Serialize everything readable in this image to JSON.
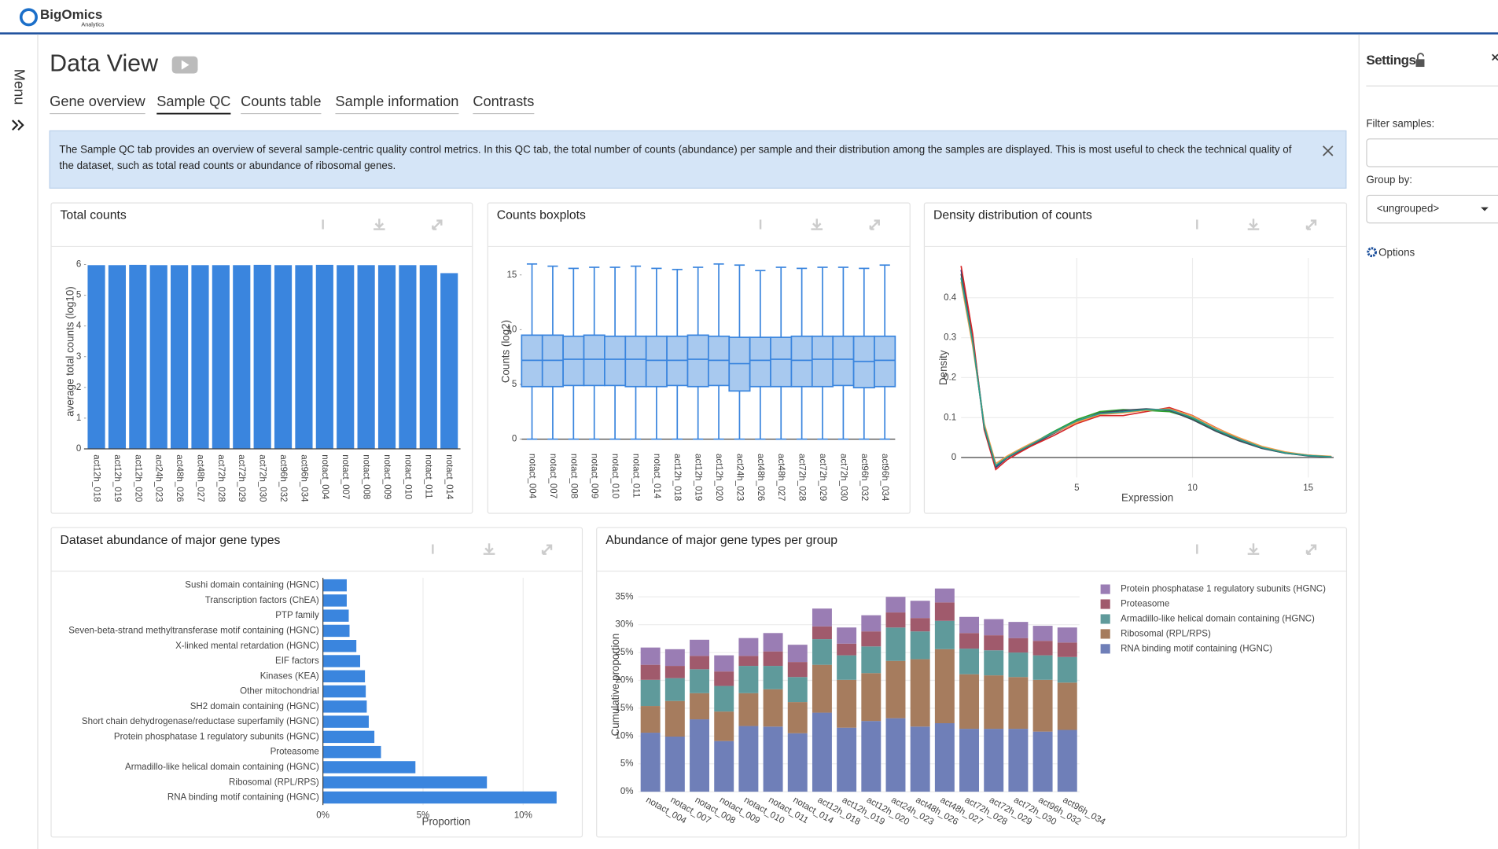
{
  "header": {
    "brand": "BigOmics",
    "sub": "Analytics"
  },
  "sidebar": {
    "label": "Menu"
  },
  "page": {
    "title": "Data View",
    "tabs": [
      "Gene overview",
      "Sample QC",
      "Counts table",
      "Sample information",
      "Contrasts"
    ],
    "active_tab": 1
  },
  "info": "The Sample QC tab provides an overview of several sample-centric quality control metrics. In this QC tab, the total number of counts (abundance) per sample and their distribution among the samples are displayed. This is most useful to check the technical quality of the dataset, such as total read counts or abundance of ribosomal genes.",
  "settings": {
    "title": "Settings",
    "filter_label": "Filter samples:",
    "group_label": "Group by:",
    "group_value": "<ungrouped>",
    "options": "Options"
  },
  "chart_data": [
    {
      "type": "bar",
      "title": "Total counts",
      "ylabel": "average total counts (log10)",
      "categories": [
        "act12h_018",
        "act12h_019",
        "act12h_020",
        "act24h_023",
        "act48h_026",
        "act48h_027",
        "act72h_028",
        "act72h_029",
        "act72h_030",
        "act96h_032",
        "act96h_034",
        "notact_004",
        "notact_007",
        "notact_008",
        "notact_009",
        "notact_010",
        "notact_011",
        "notact_014"
      ],
      "values": [
        5.98,
        5.98,
        5.99,
        5.98,
        5.98,
        5.98,
        5.98,
        5.98,
        5.99,
        5.98,
        5.98,
        5.99,
        5.98,
        5.98,
        5.98,
        5.98,
        5.98,
        5.72
      ],
      "color": "#3a85de",
      "ylim": [
        0,
        6
      ],
      "yticks": [
        0,
        1,
        2,
        3,
        4,
        5,
        6
      ],
      "grid": false
    },
    {
      "type": "box",
      "title": "Counts boxplots",
      "ylabel": "Counts (log2)",
      "categories": [
        "notact_004",
        "notact_007",
        "notact_008",
        "notact_009",
        "notact_010",
        "notact_011",
        "notact_014",
        "act12h_018",
        "act12h_019",
        "act12h_020",
        "act24h_023",
        "act48h_026",
        "act48h_027",
        "act72h_028",
        "act72h_029",
        "act72h_030",
        "act96h_032",
        "act96h_034"
      ],
      "min": [
        0,
        0,
        0,
        0,
        0,
        0,
        0,
        0,
        0,
        0,
        0,
        0,
        0,
        0,
        0,
        0,
        0,
        0
      ],
      "q1": [
        4.8,
        4.8,
        4.9,
        4.9,
        4.9,
        4.8,
        4.8,
        4.9,
        4.8,
        4.9,
        4.4,
        4.8,
        4.8,
        4.8,
        4.8,
        4.9,
        4.7,
        4.8
      ],
      "median": [
        7.2,
        7.2,
        7.3,
        7.3,
        7.3,
        7.3,
        7.2,
        7.2,
        7.3,
        7.2,
        6.9,
        7.2,
        7.3,
        7.2,
        7.3,
        7.3,
        7.1,
        7.2
      ],
      "q3": [
        9.5,
        9.5,
        9.4,
        9.5,
        9.4,
        9.4,
        9.4,
        9.4,
        9.5,
        9.4,
        9.3,
        9.3,
        9.3,
        9.4,
        9.4,
        9.4,
        9.4,
        9.4
      ],
      "max": [
        16.0,
        15.8,
        15.6,
        15.7,
        15.7,
        15.8,
        15.6,
        15.5,
        15.7,
        16.0,
        15.9,
        15.4,
        15.7,
        15.6,
        15.7,
        15.7,
        15.6,
        15.9
      ],
      "color": "#3a85de",
      "ylim": [
        -0.8,
        16.5
      ],
      "yticks": [
        0,
        5,
        10,
        15
      ],
      "grid": false
    },
    {
      "type": "line",
      "title": "Density distribution of counts",
      "xlabel": "Expression",
      "ylabel": "Density",
      "x": [
        0,
        0.5,
        1,
        1.5,
        2,
        2.5,
        3,
        4,
        5,
        6,
        7,
        8,
        9,
        10,
        11,
        12,
        13,
        14,
        15,
        16
      ],
      "series": [
        {
          "color": "#1f3a93",
          "values": [
            0.47,
            0.3,
            0.08,
            -0.025,
            0.0,
            0.015,
            0.03,
            0.06,
            0.09,
            0.11,
            0.115,
            0.12,
            0.12,
            0.1,
            0.07,
            0.045,
            0.025,
            0.012,
            0.005,
            0.002
          ]
        },
        {
          "color": "#d62728",
          "values": [
            0.48,
            0.31,
            0.07,
            -0.03,
            -0.005,
            0.012,
            0.028,
            0.055,
            0.085,
            0.105,
            0.105,
            0.115,
            0.125,
            0.105,
            0.075,
            0.048,
            0.026,
            0.013,
            0.006,
            0.002
          ]
        },
        {
          "color": "#2ca02c",
          "values": [
            0.45,
            0.29,
            0.08,
            -0.02,
            0.002,
            0.018,
            0.033,
            0.065,
            0.095,
            0.115,
            0.12,
            0.118,
            0.115,
            0.098,
            0.068,
            0.043,
            0.024,
            0.011,
            0.005,
            0.002
          ]
        },
        {
          "color": "#3d4b5c",
          "values": [
            0.46,
            0.29,
            0.075,
            -0.022,
            0.0,
            0.016,
            0.031,
            0.06,
            0.09,
            0.112,
            0.118,
            0.122,
            0.118,
            0.095,
            0.066,
            0.042,
            0.023,
            0.011,
            0.004,
            0.002
          ]
        },
        {
          "color": "#f0a04b",
          "values": [
            0.44,
            0.28,
            0.085,
            -0.015,
            0.004,
            0.02,
            0.035,
            0.062,
            0.088,
            0.108,
            0.112,
            0.118,
            0.122,
            0.104,
            0.074,
            0.05,
            0.028,
            0.014,
            0.006,
            0.003
          ]
        },
        {
          "color": "#2a9d8f",
          "values": [
            0.45,
            0.29,
            0.078,
            -0.02,
            0.001,
            0.017,
            0.032,
            0.063,
            0.092,
            0.11,
            0.114,
            0.12,
            0.12,
            0.1,
            0.07,
            0.046,
            0.025,
            0.012,
            0.005,
            0.002
          ]
        }
      ],
      "xlim": [
        0,
        16.1
      ],
      "ylim": [
        -0.05,
        0.5
      ],
      "xticks": [
        5,
        10,
        15
      ],
      "yticks": [
        0,
        0.1,
        0.2,
        0.3,
        0.4
      ],
      "grid": true
    },
    {
      "type": "hbar",
      "title": "Dataset abundance of major gene types",
      "xlabel": "Proportion",
      "categories": [
        "Sushi domain containing (HGNC)",
        "Transcription factors (ChEA)",
        "PTP family",
        "Seven-beta-strand methyltransferase motif containing (HGNC)",
        "X-linked mental retardation (HGNC)",
        "EIF factors",
        "Kinases (KEA)",
        "Other mitochondrial",
        "SH2 domain containing (HGNC)",
        "Short chain dehydrogenase/reductase superfamily (HGNC)",
        "Protein phosphatase 1 regulatory subunits (HGNC)",
        "Proteasome",
        "Armadillo-like helical domain containing (HGNC)",
        "Ribosomal (RPL/RPS)",
        "RNA binding motif containing (HGNC)"
      ],
      "values": [
        1.19,
        1.19,
        1.29,
        1.33,
        1.67,
        1.86,
        2.1,
        2.14,
        2.19,
        2.29,
        2.57,
        2.9,
        4.62,
        8.19,
        11.67
      ],
      "color": "#3a85de",
      "xlim": [
        0,
        12.5
      ],
      "xticks": [
        {
          "value": 0,
          "label": "0%"
        },
        {
          "value": 5,
          "label": "5%"
        },
        {
          "value": 10,
          "label": "10%"
        }
      ],
      "grid": true
    },
    {
      "type": "stacked_bar",
      "title": "Abundance of major gene types per group",
      "ylabel": "Cumulative proportion",
      "categories": [
        "notact_004",
        "notact_007",
        "notact_008",
        "notact_009",
        "notact_010",
        "notact_011",
        "notact_014",
        "act12h_018",
        "act12h_019",
        "act12h_020",
        "act24h_023",
        "act48h_026",
        "act48h_027",
        "act72h_028",
        "act72h_029",
        "act72h_030",
        "act96h_032",
        "act96h_034"
      ],
      "series": [
        {
          "name": "RNA binding motif containing (HGNC)",
          "color": "#6f7fb8",
          "values": [
            10.6,
            9.9,
            13.0,
            9.1,
            11.8,
            11.7,
            10.5,
            14.2,
            11.5,
            12.7,
            13.2,
            11.7,
            12.3,
            11.3,
            11.3,
            11.3,
            10.8,
            11.1
          ]
        },
        {
          "name": "Ribosomal (RPL/RPS)",
          "color": "#a67c5e",
          "values": [
            4.8,
            6.4,
            4.7,
            5.3,
            5.9,
            6.7,
            5.6,
            8.6,
            8.6,
            8.6,
            10.3,
            12.1,
            13.3,
            9.8,
            9.6,
            9.3,
            9.3,
            8.5
          ]
        },
        {
          "name": "Armadillo-like helical domain containing (HGNC)",
          "color": "#5f9a9b",
          "values": [
            4.7,
            4.1,
            4.3,
            4.6,
            4.9,
            4.2,
            4.5,
            4.6,
            4.4,
            4.8,
            6.0,
            5.0,
            5.1,
            4.6,
            4.5,
            4.4,
            4.4,
            4.6
          ]
        },
        {
          "name": "Proteasome",
          "color": "#a05a6c",
          "values": [
            2.7,
            2.2,
            2.4,
            2.6,
            1.8,
            2.6,
            2.7,
            2.3,
            2.1,
            2.7,
            2.7,
            2.4,
            3.3,
            2.8,
            2.7,
            2.6,
            2.6,
            2.6
          ]
        },
        {
          "name": "Protein phosphatase 1 regulatory subunits (HGNC)",
          "color": "#9a7db4",
          "values": [
            3.1,
            3.0,
            2.9,
            2.9,
            3.2,
            3.3,
            3.1,
            3.2,
            2.9,
            2.9,
            2.8,
            3.1,
            2.5,
            2.9,
            2.9,
            2.9,
            2.7,
            2.7
          ]
        }
      ],
      "ylim": [
        0,
        38
      ],
      "yticks": [
        {
          "value": 0,
          "label": "0%"
        },
        {
          "value": 5,
          "label": "5%"
        },
        {
          "value": 10,
          "label": "10%"
        },
        {
          "value": 15,
          "label": "15%"
        },
        {
          "value": 20,
          "label": "20%"
        },
        {
          "value": 25,
          "label": "25%"
        },
        {
          "value": 30,
          "label": "30%"
        },
        {
          "value": 35,
          "label": "35%"
        }
      ],
      "grid": true,
      "legend": "right"
    }
  ]
}
